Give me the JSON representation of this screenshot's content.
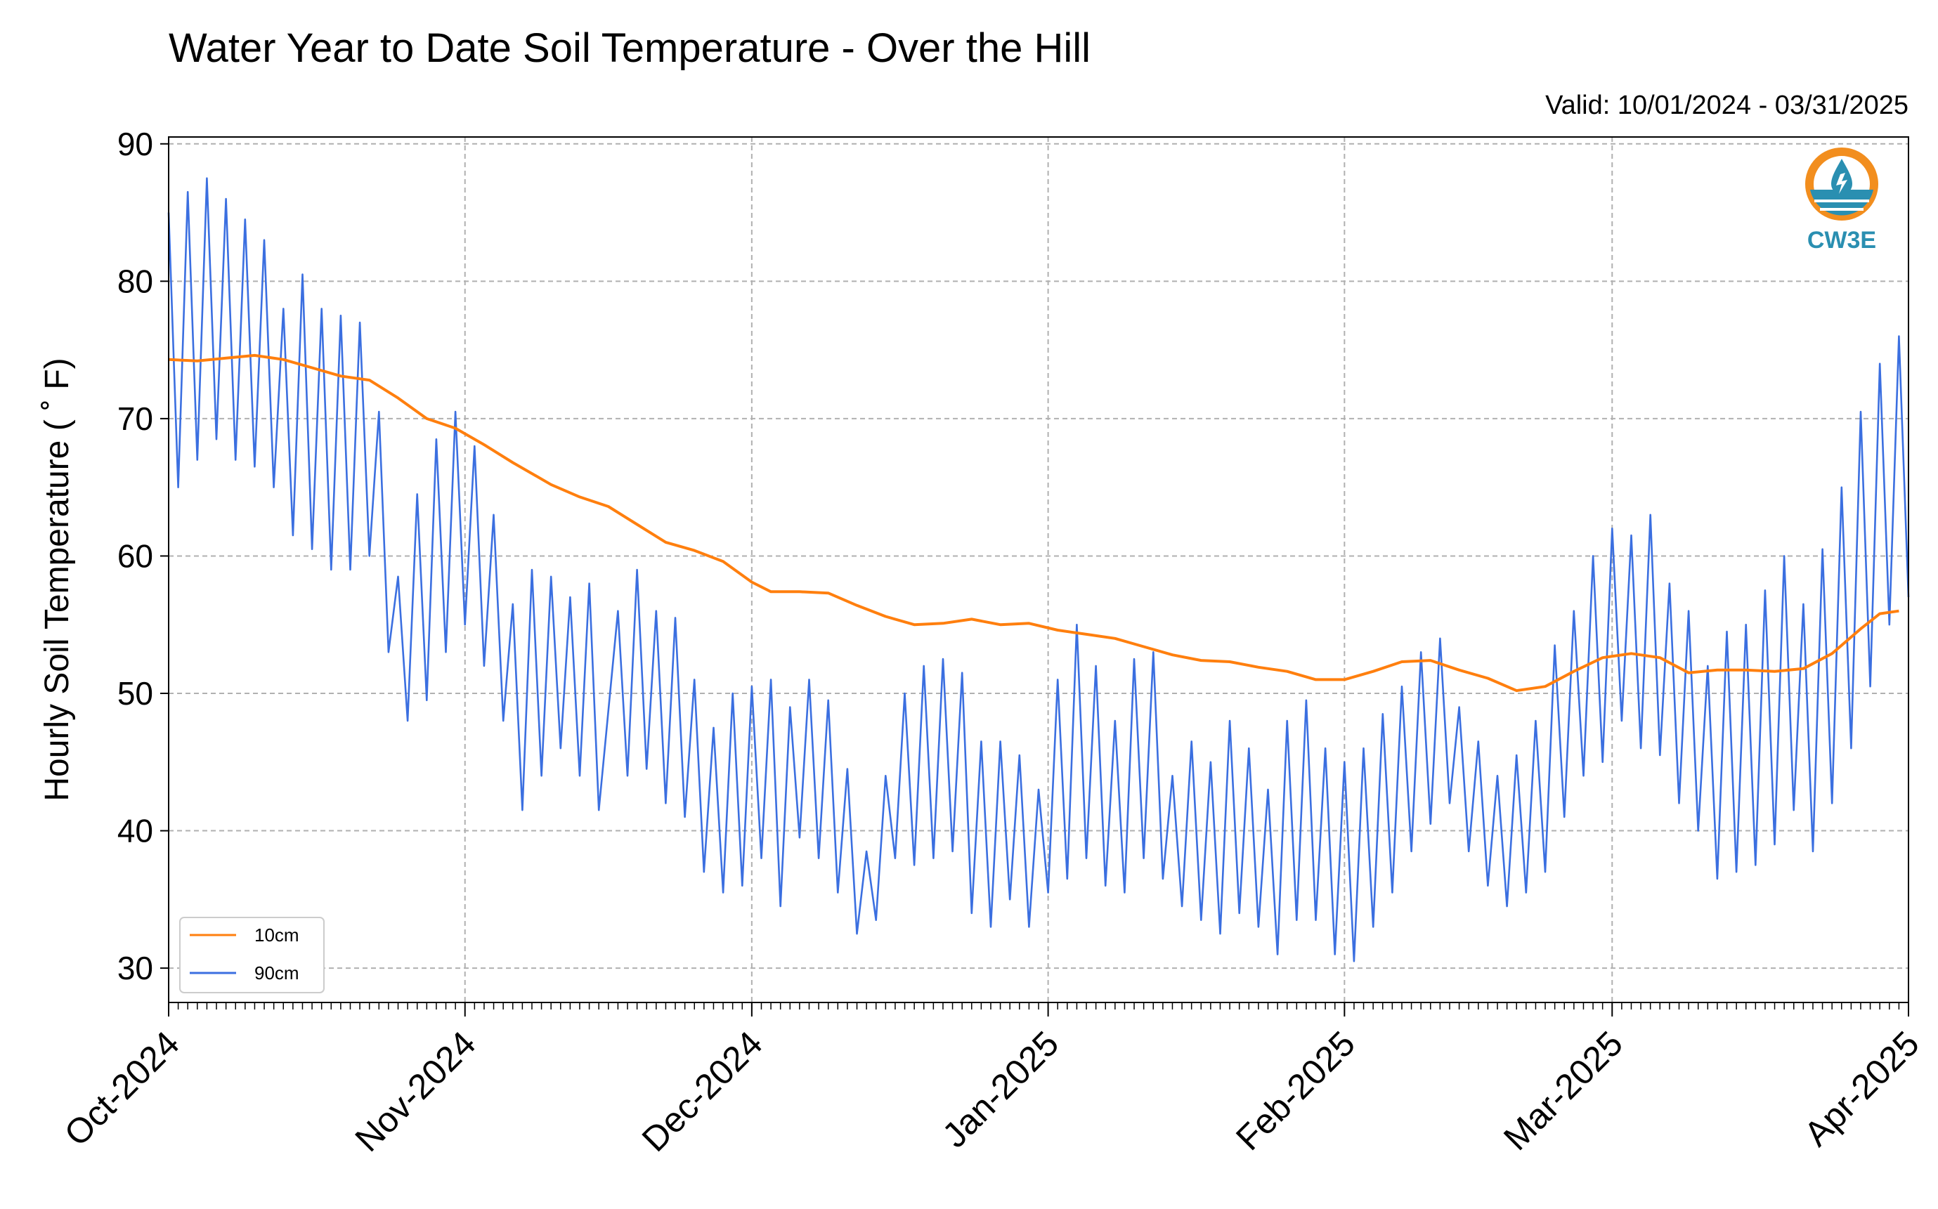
{
  "chart_data": {
    "type": "line",
    "title": "Water Year to Date Soil Temperature - Over the Hill",
    "subtitle": "Valid: 10/01/2024 - 03/31/2025",
    "xlabel": "",
    "ylabel": "Hourly Soil Temperature ($^\\circ$F)",
    "ylabel_display": "Hourly Soil Temperature ( ˚ F)",
    "xlim": [
      "2024-10-01",
      "2025-04-01"
    ],
    "ylim": [
      27.5,
      90.5
    ],
    "yticks": [
      30,
      40,
      50,
      60,
      70,
      80,
      90
    ],
    "xticks": [
      {
        "date": "2024-10-01",
        "label": "Oct-2024"
      },
      {
        "date": "2024-11-01",
        "label": "Nov-2024"
      },
      {
        "date": "2024-12-01",
        "label": "Dec-2024"
      },
      {
        "date": "2025-01-01",
        "label": "Jan-2025"
      },
      {
        "date": "2025-02-01",
        "label": "Feb-2025"
      },
      {
        "date": "2025-03-01",
        "label": "Mar-2025"
      },
      {
        "date": "2025-04-01",
        "label": "Apr-2025"
      }
    ],
    "grid": true,
    "legend_position": "lower-left",
    "series": [
      {
        "name": "10cm",
        "color": "#ff7f0e",
        "points": [
          [
            "2024-10-01",
            74.3
          ],
          [
            "2024-10-04",
            74.2
          ],
          [
            "2024-10-07",
            74.4
          ],
          [
            "2024-10-10",
            74.6
          ],
          [
            "2024-10-13",
            74.3
          ],
          [
            "2024-10-16",
            73.7
          ],
          [
            "2024-10-19",
            73.1
          ],
          [
            "2024-10-22",
            72.8
          ],
          [
            "2024-10-25",
            71.5
          ],
          [
            "2024-10-28",
            70.0
          ],
          [
            "2024-10-31",
            69.3
          ],
          [
            "2024-11-03",
            68.1
          ],
          [
            "2024-11-06",
            66.8
          ],
          [
            "2024-11-08",
            66.0
          ],
          [
            "2024-11-10",
            65.2
          ],
          [
            "2024-11-13",
            64.3
          ],
          [
            "2024-11-16",
            63.6
          ],
          [
            "2024-11-19",
            62.3
          ],
          [
            "2024-11-22",
            61.0
          ],
          [
            "2024-11-25",
            60.4
          ],
          [
            "2024-11-28",
            59.6
          ],
          [
            "2024-12-01",
            58.1
          ],
          [
            "2024-12-03",
            57.4
          ],
          [
            "2024-12-06",
            57.4
          ],
          [
            "2024-12-09",
            57.3
          ],
          [
            "2024-12-12",
            56.4
          ],
          [
            "2024-12-15",
            55.6
          ],
          [
            "2024-12-18",
            55.0
          ],
          [
            "2024-12-21",
            55.1
          ],
          [
            "2024-12-24",
            55.4
          ],
          [
            "2024-12-27",
            55.0
          ],
          [
            "2024-12-30",
            55.1
          ],
          [
            "2025-01-02",
            54.6
          ],
          [
            "2025-01-05",
            54.3
          ],
          [
            "2025-01-08",
            54.0
          ],
          [
            "2025-01-11",
            53.4
          ],
          [
            "2025-01-14",
            52.8
          ],
          [
            "2025-01-17",
            52.4
          ],
          [
            "2025-01-20",
            52.3
          ],
          [
            "2025-01-23",
            51.9
          ],
          [
            "2025-01-26",
            51.6
          ],
          [
            "2025-01-29",
            51.0
          ],
          [
            "2025-02-01",
            51.0
          ],
          [
            "2025-02-04",
            51.6
          ],
          [
            "2025-02-07",
            52.3
          ],
          [
            "2025-02-10",
            52.4
          ],
          [
            "2025-02-13",
            51.7
          ],
          [
            "2025-02-16",
            51.1
          ],
          [
            "2025-02-19",
            50.2
          ],
          [
            "2025-02-22",
            50.5
          ],
          [
            "2025-02-25",
            51.6
          ],
          [
            "2025-02-28",
            52.6
          ],
          [
            "2025-03-03",
            52.9
          ],
          [
            "2025-03-06",
            52.6
          ],
          [
            "2025-03-09",
            51.5
          ],
          [
            "2025-03-12",
            51.7
          ],
          [
            "2025-03-15",
            51.7
          ],
          [
            "2025-03-18",
            51.6
          ],
          [
            "2025-03-21",
            51.8
          ],
          [
            "2025-03-24",
            52.9
          ],
          [
            "2025-03-27",
            54.7
          ],
          [
            "2025-03-29",
            55.8
          ],
          [
            "2025-03-31",
            56.0
          ]
        ]
      },
      {
        "name": "90cm",
        "color": "#3b6fe0",
        "points": [
          [
            "2024-10-01",
            85.0
          ],
          [
            "2024-10-02",
            65.0
          ],
          [
            "2024-10-03",
            86.5
          ],
          [
            "2024-10-04",
            67.0
          ],
          [
            "2024-10-05",
            87.5
          ],
          [
            "2024-10-06",
            68.5
          ],
          [
            "2024-10-07",
            86.0
          ],
          [
            "2024-10-08",
            67.0
          ],
          [
            "2024-10-09",
            84.5
          ],
          [
            "2024-10-10",
            66.5
          ],
          [
            "2024-10-11",
            83.0
          ],
          [
            "2024-10-12",
            65.0
          ],
          [
            "2024-10-13",
            78.0
          ],
          [
            "2024-10-14",
            61.5
          ],
          [
            "2024-10-15",
            80.5
          ],
          [
            "2024-10-16",
            60.5
          ],
          [
            "2024-10-17",
            78.0
          ],
          [
            "2024-10-18",
            59.0
          ],
          [
            "2024-10-19",
            77.5
          ],
          [
            "2024-10-20",
            59.0
          ],
          [
            "2024-10-21",
            77.0
          ],
          [
            "2024-10-22",
            60.0
          ],
          [
            "2024-10-23",
            70.5
          ],
          [
            "2024-10-24",
            53.0
          ],
          [
            "2024-10-25",
            58.5
          ],
          [
            "2024-10-26",
            48.0
          ],
          [
            "2024-10-27",
            64.5
          ],
          [
            "2024-10-28",
            49.5
          ],
          [
            "2024-10-29",
            68.5
          ],
          [
            "2024-10-30",
            53.0
          ],
          [
            "2024-10-31",
            70.5
          ],
          [
            "2024-11-01",
            55.0
          ],
          [
            "2024-11-02",
            68.0
          ],
          [
            "2024-11-03",
            52.0
          ],
          [
            "2024-11-04",
            63.0
          ],
          [
            "2024-11-05",
            48.0
          ],
          [
            "2024-11-06",
            56.5
          ],
          [
            "2024-11-07",
            41.5
          ],
          [
            "2024-11-08",
            59.0
          ],
          [
            "2024-11-09",
            44.0
          ],
          [
            "2024-11-10",
            58.5
          ],
          [
            "2024-11-11",
            46.0
          ],
          [
            "2024-11-12",
            57.0
          ],
          [
            "2024-11-13",
            44.0
          ],
          [
            "2024-11-14",
            58.0
          ],
          [
            "2024-11-15",
            41.5
          ],
          [
            "2024-11-17",
            56.0
          ],
          [
            "2024-11-18",
            44.0
          ],
          [
            "2024-11-19",
            59.0
          ],
          [
            "2024-11-20",
            44.5
          ],
          [
            "2024-11-21",
            56.0
          ],
          [
            "2024-11-22",
            42.0
          ],
          [
            "2024-11-23",
            55.5
          ],
          [
            "2024-11-24",
            41.0
          ],
          [
            "2024-11-25",
            51.0
          ],
          [
            "2024-11-26",
            37.0
          ],
          [
            "2024-11-27",
            47.5
          ],
          [
            "2024-11-28",
            35.5
          ],
          [
            "2024-11-29",
            50.0
          ],
          [
            "2024-11-30",
            36.0
          ],
          [
            "2024-12-01",
            50.5
          ],
          [
            "2024-12-02",
            38.0
          ],
          [
            "2024-12-03",
            51.0
          ],
          [
            "2024-12-04",
            34.5
          ],
          [
            "2024-12-05",
            49.0
          ],
          [
            "2024-12-06",
            39.5
          ],
          [
            "2024-12-07",
            51.0
          ],
          [
            "2024-12-08",
            38.0
          ],
          [
            "2024-12-09",
            49.5
          ],
          [
            "2024-12-10",
            35.5
          ],
          [
            "2024-12-11",
            44.5
          ],
          [
            "2024-12-12",
            32.5
          ],
          [
            "2024-12-13",
            38.5
          ],
          [
            "2024-12-14",
            33.5
          ],
          [
            "2024-12-15",
            44.0
          ],
          [
            "2024-12-16",
            38.0
          ],
          [
            "2024-12-17",
            50.0
          ],
          [
            "2024-12-18",
            37.5
          ],
          [
            "2024-12-19",
            52.0
          ],
          [
            "2024-12-20",
            38.0
          ],
          [
            "2024-12-21",
            52.5
          ],
          [
            "2024-12-22",
            38.5
          ],
          [
            "2024-12-23",
            51.5
          ],
          [
            "2024-12-24",
            34.0
          ],
          [
            "2024-12-25",
            46.5
          ],
          [
            "2024-12-26",
            33.0
          ],
          [
            "2024-12-27",
            46.5
          ],
          [
            "2024-12-28",
            35.0
          ],
          [
            "2024-12-29",
            45.5
          ],
          [
            "2024-12-30",
            33.0
          ],
          [
            "2024-12-31",
            43.0
          ],
          [
            "2025-01-01",
            35.5
          ],
          [
            "2025-01-02",
            51.0
          ],
          [
            "2025-01-03",
            36.5
          ],
          [
            "2025-01-04",
            55.0
          ],
          [
            "2025-01-05",
            38.0
          ],
          [
            "2025-01-06",
            52.0
          ],
          [
            "2025-01-07",
            36.0
          ],
          [
            "2025-01-08",
            48.0
          ],
          [
            "2025-01-09",
            35.5
          ],
          [
            "2025-01-10",
            52.5
          ],
          [
            "2025-01-11",
            38.0
          ],
          [
            "2025-01-12",
            53.0
          ],
          [
            "2025-01-13",
            36.5
          ],
          [
            "2025-01-14",
            44.0
          ],
          [
            "2025-01-15",
            34.5
          ],
          [
            "2025-01-16",
            46.5
          ],
          [
            "2025-01-17",
            33.5
          ],
          [
            "2025-01-18",
            45.0
          ],
          [
            "2025-01-19",
            32.5
          ],
          [
            "2025-01-20",
            48.0
          ],
          [
            "2025-01-21",
            34.0
          ],
          [
            "2025-01-22",
            46.0
          ],
          [
            "2025-01-23",
            33.0
          ],
          [
            "2025-01-24",
            43.0
          ],
          [
            "2025-01-25",
            31.0
          ],
          [
            "2025-01-26",
            48.0
          ],
          [
            "2025-01-27",
            33.5
          ],
          [
            "2025-01-28",
            49.5
          ],
          [
            "2025-01-29",
            33.5
          ],
          [
            "2025-01-30",
            46.0
          ],
          [
            "2025-01-31",
            31.0
          ],
          [
            "2025-02-01",
            45.0
          ],
          [
            "2025-02-02",
            30.5
          ],
          [
            "2025-02-03",
            46.0
          ],
          [
            "2025-02-04",
            33.0
          ],
          [
            "2025-02-05",
            48.5
          ],
          [
            "2025-02-06",
            35.5
          ],
          [
            "2025-02-07",
            50.5
          ],
          [
            "2025-02-08",
            38.5
          ],
          [
            "2025-02-09",
            53.0
          ],
          [
            "2025-02-10",
            40.5
          ],
          [
            "2025-02-11",
            54.0
          ],
          [
            "2025-02-12",
            42.0
          ],
          [
            "2025-02-13",
            49.0
          ],
          [
            "2025-02-14",
            38.5
          ],
          [
            "2025-02-15",
            46.5
          ],
          [
            "2025-02-16",
            36.0
          ],
          [
            "2025-02-17",
            44.0
          ],
          [
            "2025-02-18",
            34.5
          ],
          [
            "2025-02-19",
            45.5
          ],
          [
            "2025-02-20",
            35.5
          ],
          [
            "2025-02-21",
            48.0
          ],
          [
            "2025-02-22",
            37.0
          ],
          [
            "2025-02-23",
            53.5
          ],
          [
            "2025-02-24",
            41.0
          ],
          [
            "2025-02-25",
            56.0
          ],
          [
            "2025-02-26",
            44.0
          ],
          [
            "2025-02-27",
            60.0
          ],
          [
            "2025-02-28",
            45.0
          ],
          [
            "2025-03-01",
            62.0
          ],
          [
            "2025-03-02",
            48.0
          ],
          [
            "2025-03-03",
            61.5
          ],
          [
            "2025-03-04",
            46.0
          ],
          [
            "2025-03-05",
            63.0
          ],
          [
            "2025-03-06",
            45.5
          ],
          [
            "2025-03-07",
            58.0
          ],
          [
            "2025-03-08",
            42.0
          ],
          [
            "2025-03-09",
            56.0
          ],
          [
            "2025-03-10",
            40.0
          ],
          [
            "2025-03-11",
            52.0
          ],
          [
            "2025-03-12",
            36.5
          ],
          [
            "2025-03-13",
            54.5
          ],
          [
            "2025-03-14",
            37.0
          ],
          [
            "2025-03-15",
            55.0
          ],
          [
            "2025-03-16",
            37.5
          ],
          [
            "2025-03-17",
            57.5
          ],
          [
            "2025-03-18",
            39.0
          ],
          [
            "2025-03-19",
            60.0
          ],
          [
            "2025-03-20",
            41.5
          ],
          [
            "2025-03-21",
            56.5
          ],
          [
            "2025-03-22",
            38.5
          ],
          [
            "2025-03-23",
            60.5
          ],
          [
            "2025-03-24",
            42.0
          ],
          [
            "2025-03-25",
            65.0
          ],
          [
            "2025-03-26",
            46.0
          ],
          [
            "2025-03-27",
            70.5
          ],
          [
            "2025-03-28",
            50.5
          ],
          [
            "2025-03-29",
            74.0
          ],
          [
            "2025-03-30",
            55.0
          ],
          [
            "2025-03-31",
            76.0
          ],
          [
            "2025-04-01",
            57.0
          ]
        ]
      }
    ]
  },
  "logo": {
    "text": "CW3E",
    "colors": {
      "orange": "#f28e1e",
      "blue": "#2a8fb1",
      "dark_blue": "#1c6d8f"
    }
  }
}
